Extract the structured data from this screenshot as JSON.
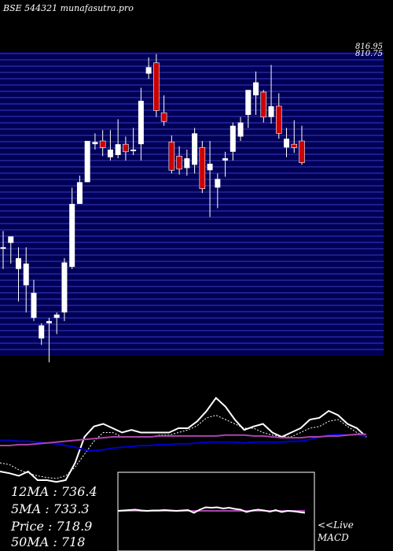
{
  "header": {
    "symbol": "BSE 544321",
    "site": "munafasutra.pro"
  },
  "colors": {
    "background": "#000000",
    "band": "#000055",
    "grid_line": "#3a3ac8",
    "up_candle": "#ffffff",
    "down_candle": "#cc0000",
    "wick": "#ffffff",
    "price_line": "#ffffff",
    "ma_fast": "#ffffff",
    "ma_slow": "#0000cc",
    "ma_long": "#aa44aa",
    "macd_line": "#ffffff",
    "signal_line": "#aa44aa"
  },
  "readouts": {
    "ma12": {
      "label": "12MA",
      "value": "736.4"
    },
    "ma5": {
      "label": "5MA",
      "value": "733.3"
    },
    "price": {
      "label": "Price",
      "value": "718.9"
    },
    "ma50": {
      "label": "50MA",
      "value": "718"
    }
  },
  "macd_label": {
    "line1": "<<Live",
    "line2": "MACD"
  },
  "chart_data": [
    {
      "type": "candlestick",
      "title": "BSE 544321",
      "ylim": [
        540,
        820
      ],
      "y_tick_labels": [
        "816.95",
        "810.75"
      ],
      "grid": true,
      "candles": [
        {
          "o": 640,
          "h": 655,
          "l": 620,
          "c": 640
        },
        {
          "o": 644,
          "h": 648,
          "l": 625,
          "c": 650
        },
        {
          "o": 620,
          "h": 640,
          "l": 590,
          "c": 630
        },
        {
          "o": 605,
          "h": 640,
          "l": 580,
          "c": 625
        },
        {
          "o": 575,
          "h": 610,
          "l": 572,
          "c": 598
        },
        {
          "o": 556,
          "h": 570,
          "l": 550,
          "c": 568
        },
        {
          "o": 570,
          "h": 575,
          "l": 534,
          "c": 572
        },
        {
          "o": 575,
          "h": 580,
          "l": 560,
          "c": 578
        },
        {
          "o": 580,
          "h": 630,
          "l": 572,
          "c": 626
        },
        {
          "o": 622,
          "h": 695,
          "l": 620,
          "c": 680
        },
        {
          "o": 680,
          "h": 706,
          "l": 680,
          "c": 700
        },
        {
          "o": 700,
          "h": 738,
          "l": 700,
          "c": 738
        },
        {
          "o": 735,
          "h": 745,
          "l": 730,
          "c": 737
        },
        {
          "o": 738,
          "h": 748,
          "l": 724,
          "c": 732
        },
        {
          "o": 723,
          "h": 748,
          "l": 720,
          "c": 730
        },
        {
          "o": 725,
          "h": 758,
          "l": 722,
          "c": 735
        },
        {
          "o": 735,
          "h": 742,
          "l": 720,
          "c": 728
        },
        {
          "o": 730,
          "h": 750,
          "l": 725,
          "c": 730
        },
        {
          "o": 735,
          "h": 787,
          "l": 720,
          "c": 775
        },
        {
          "o": 800,
          "h": 815,
          "l": 795,
          "c": 806
        },
        {
          "o": 810,
          "h": 818,
          "l": 760,
          "c": 766
        },
        {
          "o": 764,
          "h": 780,
          "l": 752,
          "c": 756
        },
        {
          "o": 737,
          "h": 743,
          "l": 708,
          "c": 711
        },
        {
          "o": 724,
          "h": 733,
          "l": 707,
          "c": 712
        },
        {
          "o": 713,
          "h": 730,
          "l": 706,
          "c": 722
        },
        {
          "o": 716,
          "h": 750,
          "l": 708,
          "c": 745
        },
        {
          "o": 732,
          "h": 738,
          "l": 690,
          "c": 694
        },
        {
          "o": 711,
          "h": 738,
          "l": 668,
          "c": 717
        },
        {
          "o": 695,
          "h": 708,
          "l": 676,
          "c": 703
        },
        {
          "o": 720,
          "h": 728,
          "l": 705,
          "c": 722
        },
        {
          "o": 728,
          "h": 755,
          "l": 720,
          "c": 752
        },
        {
          "o": 742,
          "h": 760,
          "l": 738,
          "c": 755
        },
        {
          "o": 762,
          "h": 784,
          "l": 750,
          "c": 785
        },
        {
          "o": 780,
          "h": 802,
          "l": 762,
          "c": 792
        },
        {
          "o": 783,
          "h": 785,
          "l": 755,
          "c": 760
        },
        {
          "o": 760,
          "h": 808,
          "l": 754,
          "c": 770
        },
        {
          "o": 770,
          "h": 782,
          "l": 740,
          "c": 745
        },
        {
          "o": 732,
          "h": 750,
          "l": 723,
          "c": 740
        },
        {
          "o": 735,
          "h": 757,
          "l": 727,
          "c": 732
        },
        {
          "o": 738,
          "h": 752,
          "l": 716,
          "c": 718
        }
      ]
    },
    {
      "type": "line",
      "title": "moving averages",
      "ylim": [
        0,
        100
      ],
      "series": [
        {
          "name": "12MA",
          "values": [
            20,
            18,
            12,
            8,
            5,
            3,
            2,
            5,
            15,
            30,
            45,
            55,
            55,
            50,
            50,
            50,
            50,
            52,
            52,
            55,
            58,
            63,
            72,
            75,
            70,
            65,
            60,
            60,
            55,
            52,
            50,
            50,
            55,
            60,
            62,
            68,
            70,
            62,
            55,
            50
          ]
        },
        {
          "name": "5MA",
          "values": [
            10,
            8,
            5,
            10,
            0,
            0,
            -2,
            0,
            20,
            50,
            62,
            65,
            60,
            55,
            58,
            55,
            55,
            55,
            55,
            60,
            60,
            68,
            80,
            95,
            85,
            70,
            58,
            62,
            65,
            55,
            50,
            55,
            60,
            70,
            72,
            80,
            75,
            65,
            60,
            50
          ]
        },
        {
          "name": "50MA",
          "values": [
            46,
            46,
            45,
            45,
            44,
            43,
            42,
            40,
            38,
            35,
            34,
            35,
            37,
            38,
            39,
            40,
            40,
            41,
            41,
            42,
            42,
            43,
            44,
            44,
            44,
            44,
            43,
            44,
            44,
            44,
            44,
            45,
            45,
            47,
            50,
            52,
            53,
            52,
            52,
            51
          ]
        },
        {
          "name": "long",
          "values": [
            40,
            40,
            41,
            41,
            42,
            43,
            44,
            45,
            46,
            47,
            48,
            49,
            50,
            50,
            50,
            50,
            50,
            51,
            51,
            51,
            51,
            51,
            51,
            51,
            52,
            52,
            52,
            51,
            51,
            50,
            49,
            49,
            49,
            50,
            50,
            51,
            51,
            52,
            53,
            53
          ]
        }
      ]
    },
    {
      "type": "line",
      "title": "MACD",
      "ylim": [
        -2,
        2
      ],
      "series": [
        {
          "name": "MACD",
          "values": [
            0,
            0.1,
            0.2,
            0.3,
            0.1,
            0,
            0.1,
            0.1,
            0.2,
            0.1,
            0,
            0.1,
            0.2,
            -0.5,
            0.3,
            0.9,
            0.8,
            0.9,
            0.6,
            0.8,
            0.5,
            0.3,
            -0.3,
            0.1,
            0.3,
            0.1,
            -0.2,
            0.2,
            -0.3,
            0,
            -0.1,
            -0.3,
            -0.5
          ]
        },
        {
          "name": "Signal",
          "values": [
            0,
            0,
            0,
            0,
            0,
            0,
            0,
            0,
            0,
            0,
            0,
            0,
            0,
            0,
            0,
            0,
            0,
            0,
            0,
            0,
            0,
            0,
            0,
            0,
            0,
            0,
            0,
            0,
            0,
            0,
            0,
            0,
            0
          ]
        }
      ]
    }
  ]
}
